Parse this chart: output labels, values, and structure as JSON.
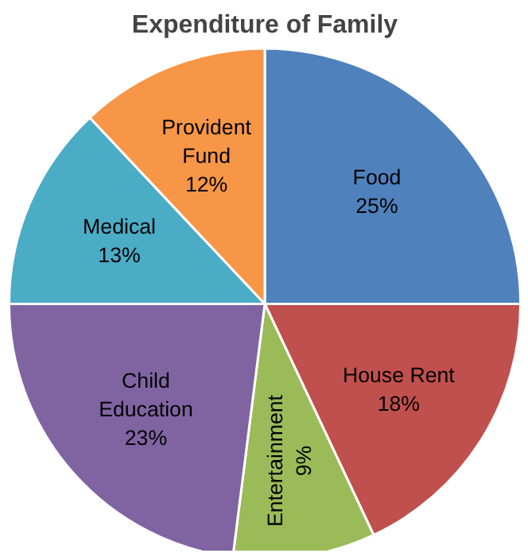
{
  "chart_data": {
    "type": "pie",
    "title": "Expenditure of Family",
    "categories": [
      "Food",
      "House Rent",
      "Entertainment",
      "Child Education",
      "Medical",
      "Provident Fund"
    ],
    "values": [
      25,
      18,
      9,
      23,
      13,
      12
    ],
    "colors": [
      "#4f81bd",
      "#c0504d",
      "#9bbb59",
      "#8064a2",
      "#4bacc6",
      "#f79646"
    ],
    "value_labels": [
      "25%",
      "18%",
      "9%",
      "23%",
      "13%",
      "12%"
    ]
  }
}
